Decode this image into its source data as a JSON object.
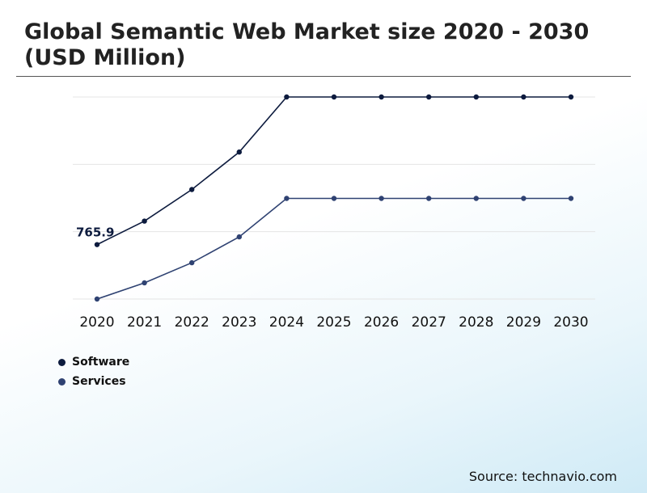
{
  "title": "Global Semantic Web Market size 2020 - 2030 (USD Million)",
  "source": "Source: technavio.com",
  "colors": {
    "software": "#0d1b3e",
    "services": "#2f4272",
    "grid": "#e4e4e4"
  },
  "legend": [
    {
      "name": "Software",
      "color": "#0d1b3e"
    },
    {
      "name": "Services",
      "color": "#2f4272"
    }
  ],
  "chart_data": {
    "type": "line",
    "x": [
      "2020",
      "2021",
      "2022",
      "2023",
      "2024",
      "2025",
      "2026",
      "2027",
      "2028",
      "2029",
      "2030"
    ],
    "series": [
      {
        "name": "Software",
        "values": [
          765.9,
          885,
          1045,
          1235,
          1514,
          1514,
          1514,
          1514,
          1514,
          1514,
          1514
        ]
      },
      {
        "name": "Services",
        "values": [
          490,
          572,
          674,
          805,
          1000,
          1000,
          1000,
          1000,
          1000,
          1000,
          1000
        ]
      }
    ],
    "data_labels": [
      {
        "series": "Software",
        "x": "2020",
        "text": "765.9"
      }
    ],
    "ylim": [
      490,
      1514
    ],
    "grid": true,
    "legend_position": "bottom-left",
    "title": "Global Semantic Web Market size 2020 - 2030 (USD Million)",
    "xlabel": "",
    "ylabel": ""
  }
}
